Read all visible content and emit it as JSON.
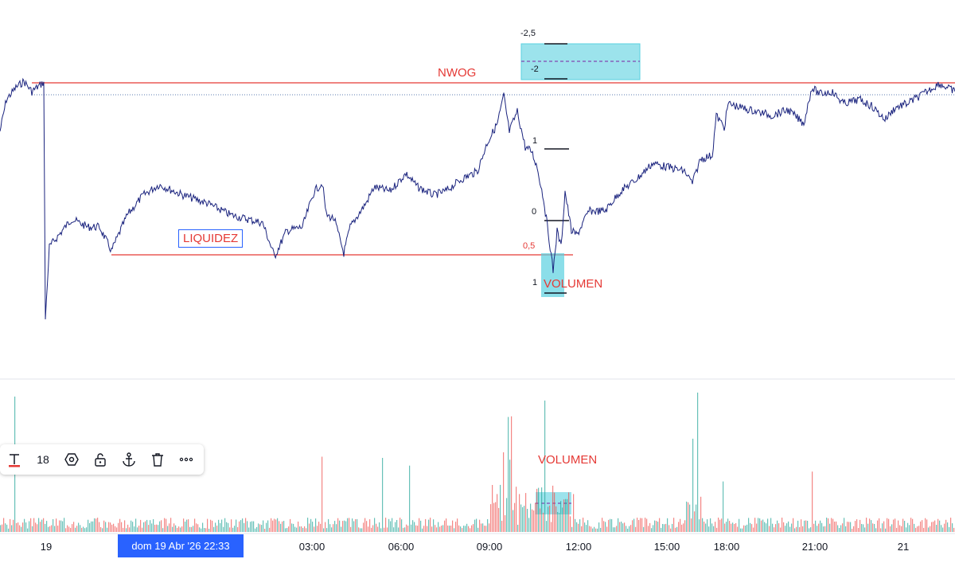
{
  "chart_data": {
    "type": "line",
    "x_ticks": [
      "19",
      "03:00",
      "06:00",
      "09:00",
      "12:00",
      "15:00",
      "18:00",
      "21:00",
      "21"
    ],
    "crosshair_label": "dom 19 Abr '26   22:33",
    "annotations": {
      "nwog": "NWOG",
      "liquidez": "LIQUIDEZ",
      "volumen_price": "VOLUMEN",
      "volumen_volume": "VOLUMEN"
    },
    "fib_levels": [
      "-2,5",
      "-2",
      "1",
      "0",
      "0,5",
      "1"
    ],
    "colors": {
      "price_line": "#1a237e",
      "level_line": "#e53935",
      "highlight_box": "#5ad0e0",
      "volume_up": "#26a69a",
      "volume_down": "#ef5350"
    }
  },
  "toolbar": {
    "font_size": "18",
    "icons": [
      "text-icon",
      "settings-hex-icon",
      "lock-icon",
      "anchor-icon",
      "trash-icon",
      "more-icon"
    ]
  }
}
